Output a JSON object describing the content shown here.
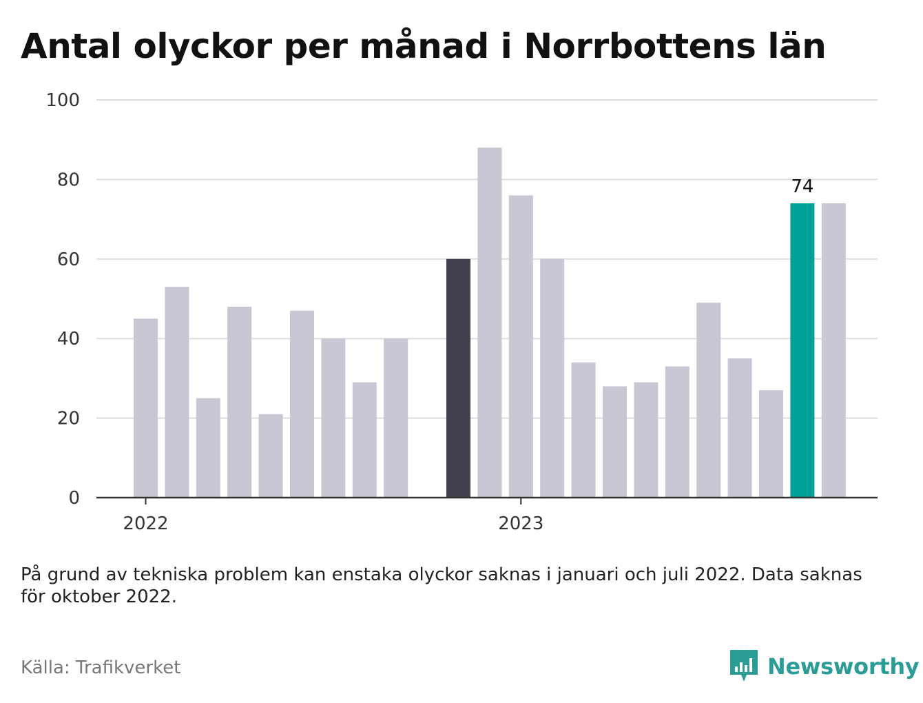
{
  "title": "Antal olyckor per månad i Norrbottens län",
  "note": "På grund av tekniska problem kan enstaka olyckor saknas i januari och juli 2022. Data saknas för oktober 2022.",
  "source": "Källa: Trafikverket",
  "brand": {
    "name": "Newsworthy",
    "logo_icon": "newsworthy-bar-chart-logo-icon",
    "color": "#2c9c96"
  },
  "chart_data": {
    "type": "bar",
    "title": "Antal olyckor per månad i Norrbottens län",
    "xlabel": "",
    "ylabel": "",
    "ylim": [
      0,
      100
    ],
    "yticks": [
      0,
      20,
      40,
      60,
      80,
      100
    ],
    "grid": true,
    "legend": "none",
    "year_labels": [
      {
        "label": "2022",
        "at_month": "2022-01"
      },
      {
        "label": "2023",
        "at_month": "2023-01"
      }
    ],
    "categories": [
      "2022-01",
      "2022-02",
      "2022-03",
      "2022-04",
      "2022-05",
      "2022-06",
      "2022-07",
      "2022-08",
      "2022-09",
      "2022-10",
      "2022-11",
      "2022-12",
      "2023-01",
      "2023-02",
      "2023-03",
      "2023-04",
      "2023-05",
      "2023-06",
      "2023-07",
      "2023-08",
      "2023-09",
      "2023-10",
      "2023-11",
      "2023-12"
    ],
    "values": [
      45,
      53,
      25,
      48,
      21,
      47,
      40,
      29,
      40,
      null,
      60,
      88,
      76,
      60,
      34,
      28,
      29,
      33,
      49,
      35,
      27,
      74,
      74,
      null
    ],
    "highlight": [
      {
        "month": "2022-11",
        "color": "#43404f"
      },
      {
        "month": "2023-10",
        "color": "#00a199",
        "label": "74"
      }
    ],
    "colors": {
      "default_bar": "#c8c7d3",
      "grid": "#dedede",
      "axis": "#333333",
      "tick_text": "#333333"
    }
  }
}
